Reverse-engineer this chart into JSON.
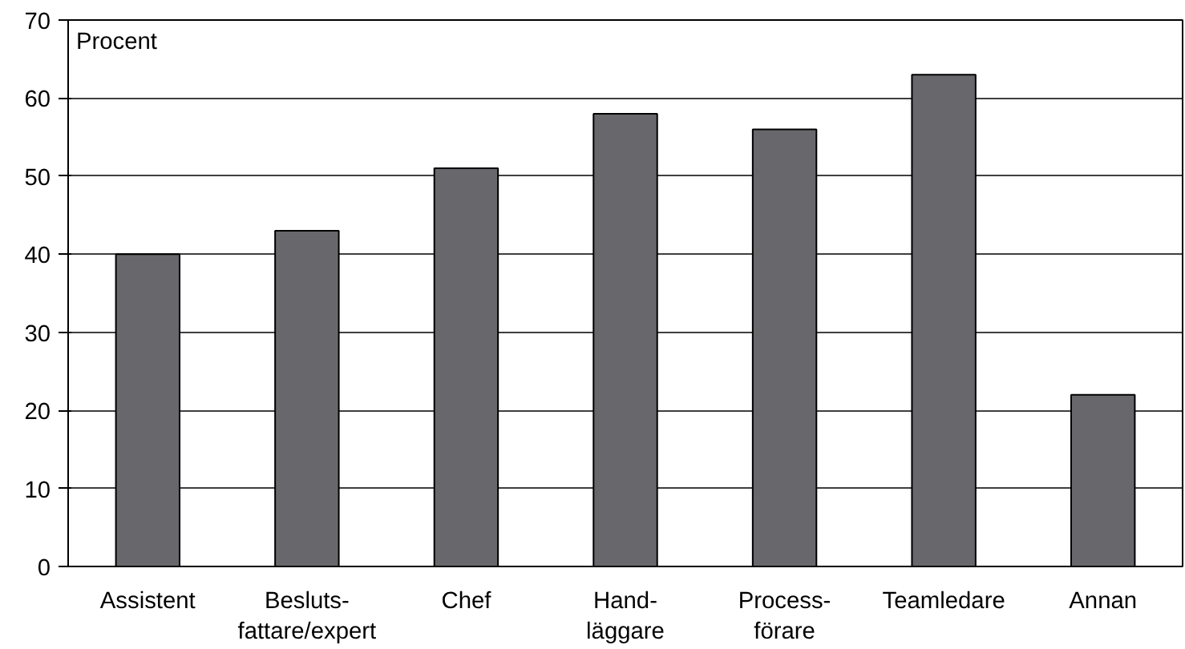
{
  "chart_data": {
    "type": "bar",
    "ylabel": "Procent",
    "categories": [
      "Assistent",
      "Besluts-\nfattare/expert",
      "Chef",
      "Hand-\nläggare",
      "Process-\nförare",
      "Teamledare",
      "Annan"
    ],
    "values": [
      40,
      43,
      51,
      58,
      56,
      63,
      22
    ],
    "color": "#68686c",
    "ylim": [
      0,
      70
    ],
    "yticks": [
      0,
      10,
      20,
      30,
      40,
      50,
      60,
      70
    ],
    "grid": "y"
  }
}
